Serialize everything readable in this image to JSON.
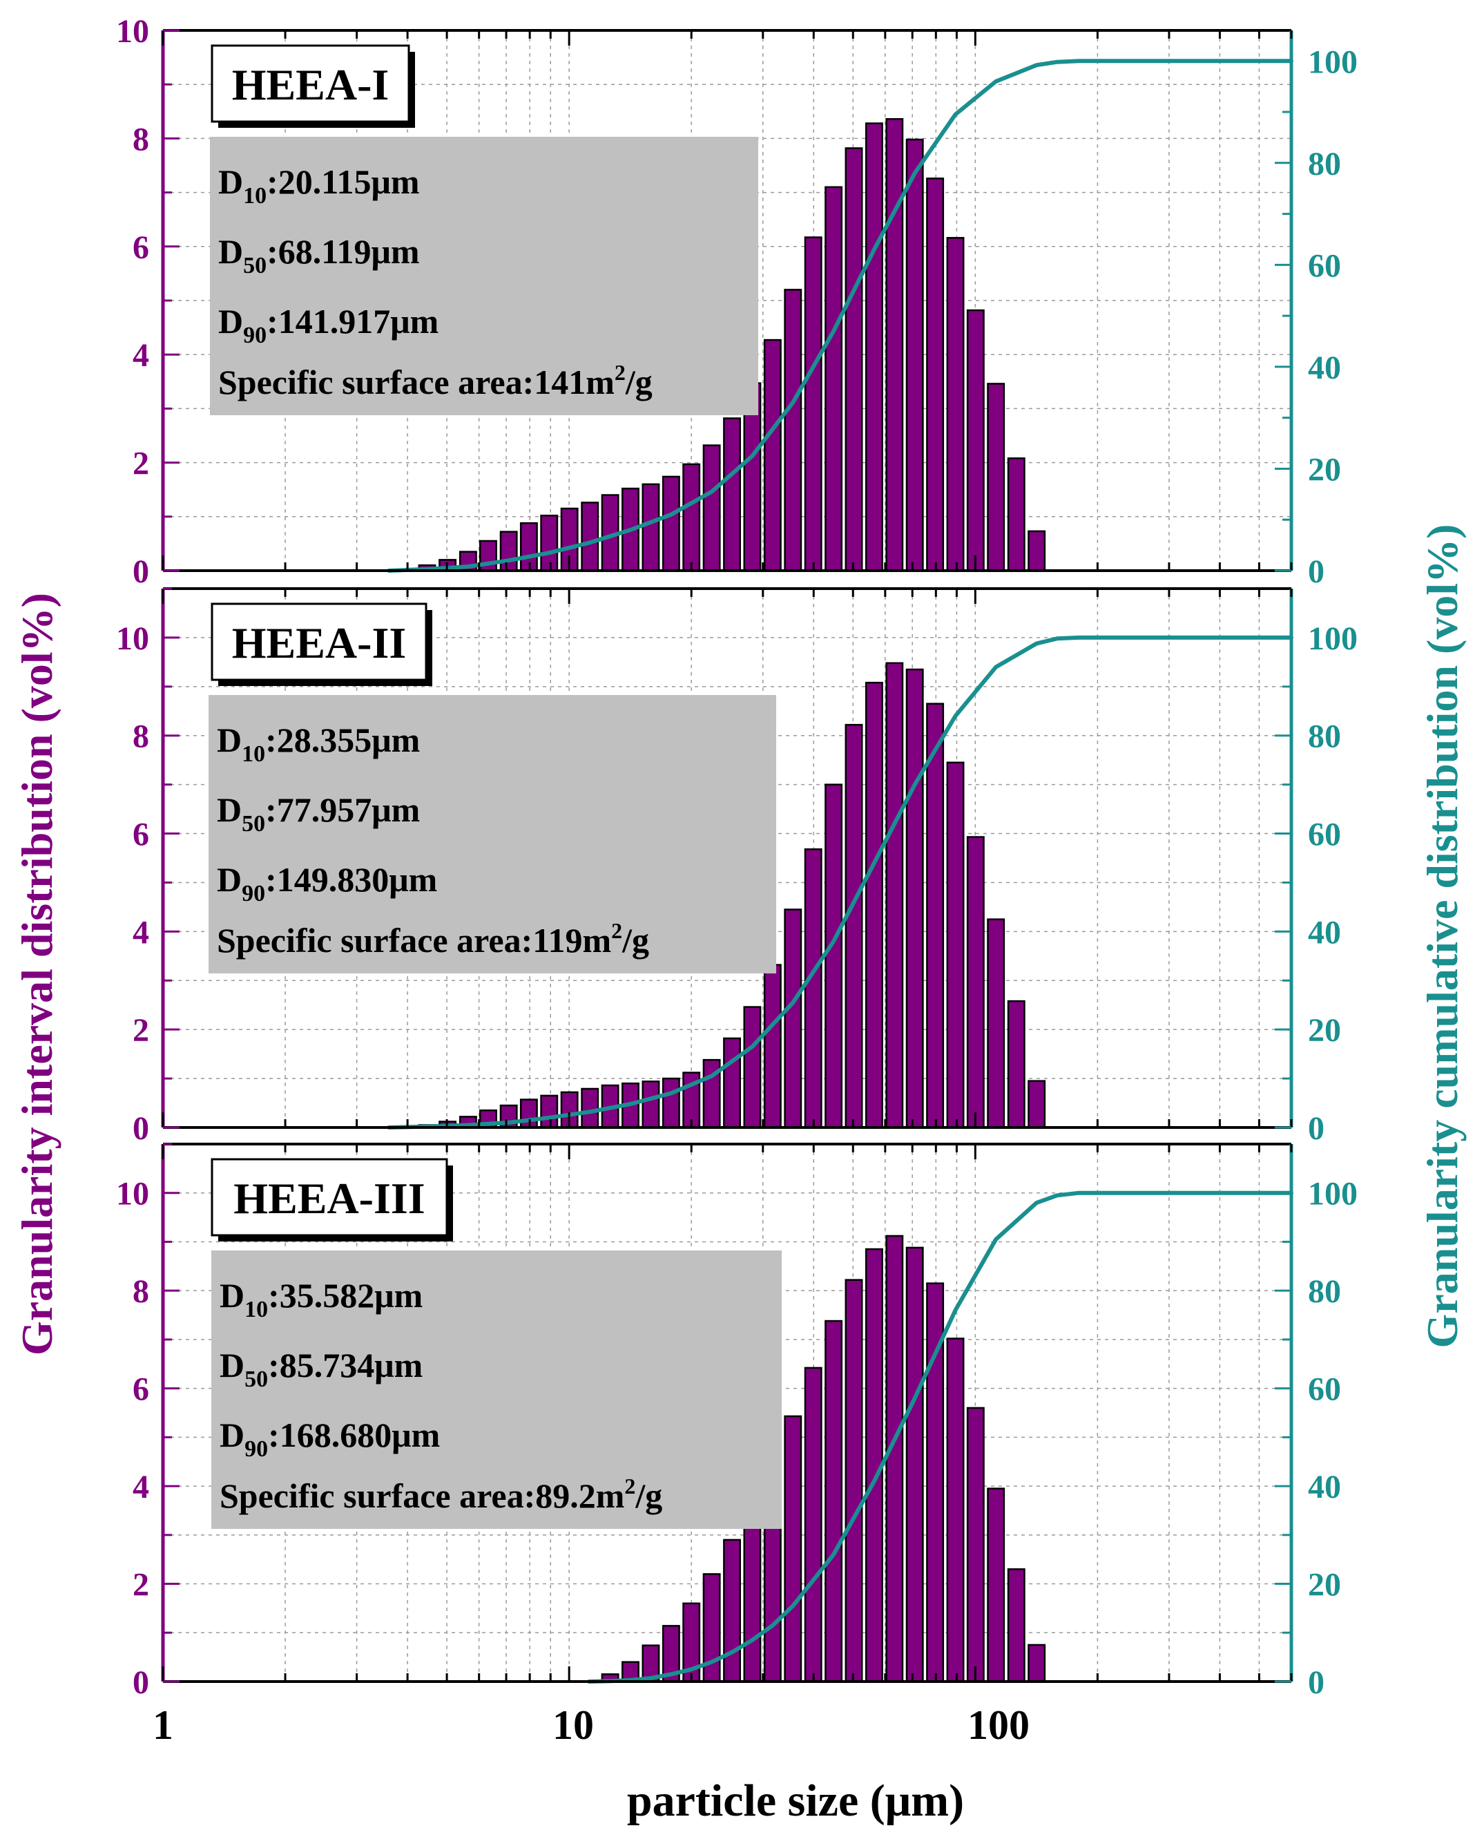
{
  "colors": {
    "bar_fill": "#800080",
    "bar_stroke": "#000000",
    "curve": "#1a8f8f",
    "left_axis": "#800080",
    "right_axis": "#1a8f8f",
    "stats_box": "#c0c0c0",
    "grid": "#9a9a9a"
  },
  "chart_data": {
    "type": "bar",
    "xlabel": "particle size (μm)",
    "ylabel_left": "Granularity interval distribution (vol%)",
    "ylabel_right": "Granularity cumulative distribution (vol%)",
    "x_scale": "log",
    "xlim": [
      1,
      600
    ],
    "x_ticks": [
      1,
      10,
      100
    ],
    "x_tick_labels": [
      "1",
      "10",
      "100"
    ],
    "bin_ratio": 1.122,
    "panels": [
      {
        "name": "HEEA-I",
        "stats": [
          {
            "label": "D",
            "sub": "10",
            "value": ":20.115μm"
          },
          {
            "label": "D",
            "sub": "50",
            "value": ":68.119μm"
          },
          {
            "label": "D",
            "sub": "90",
            "value": ":141.917μm"
          }
        ],
        "area": {
          "text": "Specific surface area:141m",
          "sup": "2",
          "unit": "/g"
        },
        "ylim_left": [
          0,
          10
        ],
        "left_ticks": [
          0,
          2,
          4,
          6,
          8,
          10
        ],
        "ylim_right": [
          0,
          106
        ],
        "right_ticks": [
          0,
          20,
          40,
          60,
          80,
          100
        ],
        "bins": [
          [
            4.47,
            0.1
          ],
          [
            5.02,
            0.2
          ],
          [
            5.64,
            0.35
          ],
          [
            6.32,
            0.55
          ],
          [
            7.1,
            0.72
          ],
          [
            7.96,
            0.88
          ],
          [
            8.93,
            1.02
          ],
          [
            10.02,
            1.15
          ],
          [
            11.25,
            1.26
          ],
          [
            12.62,
            1.4
          ],
          [
            14.16,
            1.52
          ],
          [
            15.89,
            1.6
          ],
          [
            17.83,
            1.74
          ],
          [
            20.0,
            1.97
          ],
          [
            22.44,
            2.32
          ],
          [
            25.18,
            2.82
          ],
          [
            28.25,
            3.47
          ],
          [
            31.7,
            4.27
          ],
          [
            35.57,
            5.2
          ],
          [
            39.91,
            6.17
          ],
          [
            44.78,
            7.1
          ],
          [
            50.24,
            7.82
          ],
          [
            56.37,
            8.28
          ],
          [
            63.25,
            8.36
          ],
          [
            70.96,
            7.98
          ],
          [
            79.62,
            7.26
          ],
          [
            89.34,
            6.16
          ],
          [
            100.2,
            4.82
          ],
          [
            112.4,
            3.46
          ],
          [
            126.2,
            2.08
          ],
          [
            141.6,
            0.73
          ]
        ],
        "cumulative": {
          "x": [
            3.6,
            4.47,
            5.64,
            7.1,
            8.93,
            11.25,
            14.16,
            17.83,
            22.44,
            28.25,
            35.57,
            44.78,
            56.37,
            70.96,
            89.34,
            112.4,
            141.6,
            159,
            180,
            200,
            600
          ],
          "y": [
            0,
            0.3,
            0.8,
            2.0,
            3.5,
            5.5,
            8.0,
            11.0,
            15.5,
            22.5,
            33.0,
            47.0,
            63.0,
            78.0,
            89.5,
            96.0,
            99.2,
            99.8,
            100,
            100,
            100
          ]
        }
      },
      {
        "name": "HEEA-II",
        "stats": [
          {
            "label": "D",
            "sub": "10",
            "value": ":28.355μm"
          },
          {
            "label": "D",
            "sub": "50",
            "value": ":77.957μm"
          },
          {
            "label": "D",
            "sub": "90",
            "value": ":149.830μm"
          }
        ],
        "area": {
          "text": "Specific surface area:119m",
          "sup": "2",
          "unit": "/g"
        },
        "ylim_left": [
          0,
          11
        ],
        "left_ticks": [
          0,
          2,
          4,
          6,
          8,
          10
        ],
        "ylim_right": [
          0,
          110
        ],
        "right_ticks": [
          0,
          20,
          40,
          60,
          80,
          100
        ],
        "bins": [
          [
            4.47,
            0.05
          ],
          [
            5.02,
            0.12
          ],
          [
            5.64,
            0.22
          ],
          [
            6.32,
            0.35
          ],
          [
            7.1,
            0.45
          ],
          [
            7.96,
            0.57
          ],
          [
            8.93,
            0.65
          ],
          [
            10.02,
            0.72
          ],
          [
            11.25,
            0.79
          ],
          [
            12.62,
            0.86
          ],
          [
            14.16,
            0.9
          ],
          [
            15.89,
            0.94
          ],
          [
            17.83,
            1.0
          ],
          [
            20.0,
            1.12
          ],
          [
            22.44,
            1.38
          ],
          [
            25.18,
            1.82
          ],
          [
            28.25,
            2.46
          ],
          [
            31.7,
            3.32
          ],
          [
            35.57,
            4.45
          ],
          [
            39.91,
            5.68
          ],
          [
            44.78,
            7.0
          ],
          [
            50.24,
            8.22
          ],
          [
            56.37,
            9.08
          ],
          [
            63.25,
            9.48
          ],
          [
            70.96,
            9.35
          ],
          [
            79.62,
            8.65
          ],
          [
            89.34,
            7.45
          ],
          [
            100.2,
            5.93
          ],
          [
            112.4,
            4.25
          ],
          [
            126.2,
            2.58
          ],
          [
            141.6,
            0.95
          ]
        ],
        "cumulative": {
          "x": [
            3.6,
            4.47,
            5.64,
            7.1,
            8.93,
            11.25,
            14.16,
            17.83,
            22.44,
            28.25,
            35.57,
            44.78,
            56.37,
            70.96,
            89.34,
            112.4,
            141.6,
            159,
            180,
            200,
            600
          ],
          "y": [
            0,
            0.2,
            0.5,
            1.0,
            2.0,
            3.2,
            4.8,
            7.0,
            10.5,
            16.5,
            25.5,
            38.0,
            54.0,
            70.0,
            84.0,
            94.0,
            98.8,
            99.8,
            100,
            100,
            100
          ]
        }
      },
      {
        "name": "HEEA-III",
        "stats": [
          {
            "label": "D",
            "sub": "10",
            "value": ":35.582μm"
          },
          {
            "label": "D",
            "sub": "50",
            "value": ":85.734μm"
          },
          {
            "label": "D",
            "sub": "90",
            "value": ":168.680μm"
          }
        ],
        "area": {
          "text": "Specific surface area:89.2m",
          "sup": "2",
          "unit": "/g"
        },
        "ylim_left": [
          0,
          11
        ],
        "left_ticks": [
          0,
          2,
          4,
          6,
          8,
          10
        ],
        "ylim_right": [
          0,
          110
        ],
        "right_ticks": [
          0,
          20,
          40,
          60,
          80,
          100
        ],
        "bins": [
          [
            12.62,
            0.15
          ],
          [
            14.16,
            0.4
          ],
          [
            15.89,
            0.74
          ],
          [
            17.83,
            1.14
          ],
          [
            20.0,
            1.6
          ],
          [
            22.44,
            2.2
          ],
          [
            25.18,
            2.9
          ],
          [
            28.25,
            3.65
          ],
          [
            31.7,
            4.5
          ],
          [
            35.57,
            5.43
          ],
          [
            39.91,
            6.42
          ],
          [
            44.78,
            7.38
          ],
          [
            50.24,
            8.22
          ],
          [
            56.37,
            8.85
          ],
          [
            63.25,
            9.12
          ],
          [
            70.96,
            8.88
          ],
          [
            79.62,
            8.15
          ],
          [
            89.34,
            7.02
          ],
          [
            100.2,
            5.6
          ],
          [
            112.4,
            3.95
          ],
          [
            126.2,
            2.3
          ],
          [
            141.6,
            0.75
          ]
        ],
        "cumulative": {
          "x": [
            11.2,
            12.62,
            14.16,
            15.89,
            17.83,
            20.0,
            22.44,
            25.18,
            28.25,
            31.7,
            35.57,
            44.78,
            56.37,
            70.96,
            89.34,
            112.4,
            141.6,
            159,
            180,
            200,
            600
          ],
          "y": [
            0,
            0.1,
            0.3,
            0.7,
            1.5,
            2.5,
            4.0,
            6.0,
            8.5,
            11.5,
            15.5,
            26.0,
            41.0,
            58.0,
            76.0,
            90.5,
            98.0,
            99.5,
            100,
            100,
            100
          ]
        }
      }
    ]
  }
}
